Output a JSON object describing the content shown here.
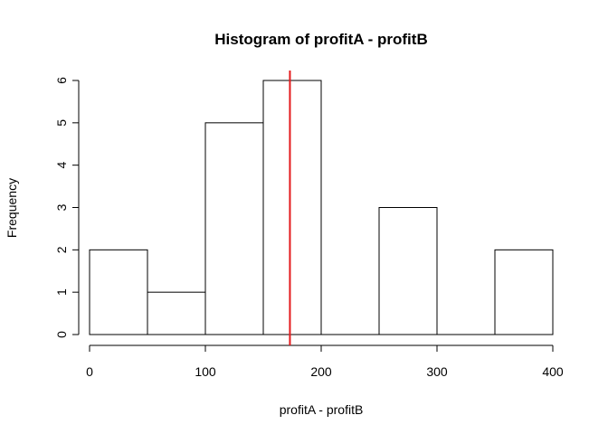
{
  "chart_data": {
    "type": "bar",
    "title": "Histogram of profitA - profitB",
    "xlabel": "profitA - profitB",
    "ylabel": "Frequency",
    "bins": [
      {
        "start": 0,
        "end": 50,
        "count": 2
      },
      {
        "start": 50,
        "end": 100,
        "count": 1
      },
      {
        "start": 100,
        "end": 150,
        "count": 5
      },
      {
        "start": 150,
        "end": 200,
        "count": 6
      },
      {
        "start": 200,
        "end": 250,
        "count": 0
      },
      {
        "start": 250,
        "end": 300,
        "count": 3
      },
      {
        "start": 300,
        "end": 350,
        "count": 0
      },
      {
        "start": 350,
        "end": 400,
        "count": 2
      }
    ],
    "xlim": [
      0,
      400
    ],
    "ylim": [
      0,
      6
    ],
    "xticks": [
      0,
      100,
      200,
      300,
      400
    ],
    "yticks": [
      0,
      1,
      2,
      3,
      4,
      5,
      6
    ],
    "vline": {
      "x": 173,
      "color": "#e41a1c"
    },
    "bar_fill": "#ffffff",
    "bar_stroke": "#000000",
    "grid": false,
    "legend": "none"
  }
}
